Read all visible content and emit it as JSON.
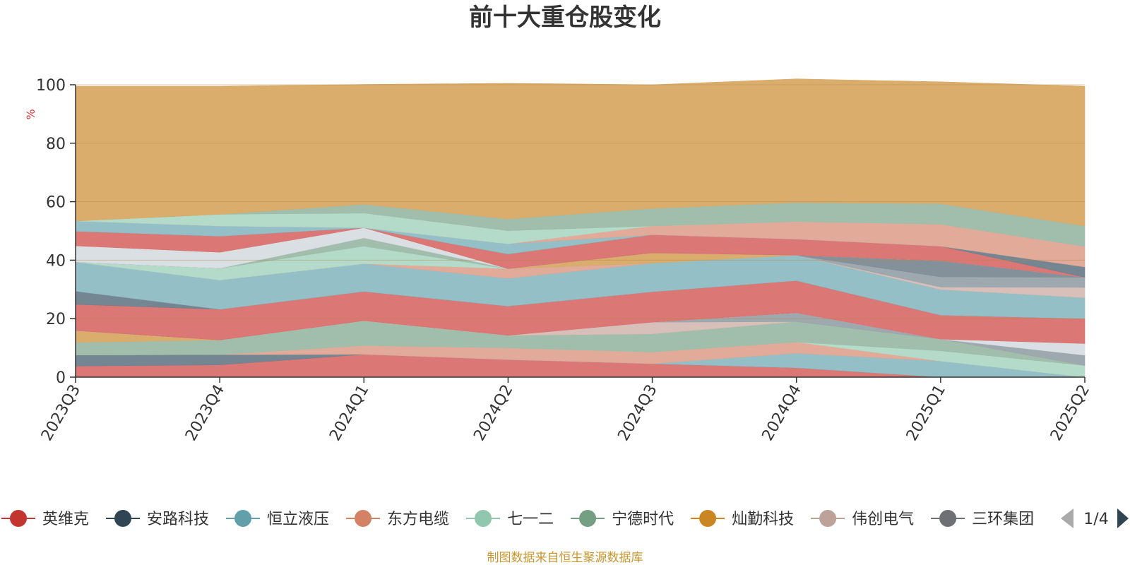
{
  "chart_data": {
    "type": "area",
    "title": "前十大重仓股变化",
    "ylabel": "%",
    "ylim": [
      0,
      100
    ],
    "yticks": [
      0,
      20,
      40,
      60,
      80,
      100
    ],
    "x": [
      "2023Q3",
      "2023Q4",
      "2024Q1",
      "2024Q2",
      "2024Q3",
      "2024Q4",
      "2025Q1",
      "2025Q2"
    ],
    "series": [
      {
        "name": "英维克",
        "color": "#d9706d",
        "values": [
          3.8,
          4.2,
          7.8,
          6.0,
          4.6,
          3.2,
          0,
          0
        ]
      },
      {
        "name": "安路科技",
        "color": "#6e7f8d",
        "values": [
          3.8,
          3.5,
          0,
          0,
          0,
          0,
          0,
          0
        ]
      },
      {
        "name": "恒立液压",
        "color": "#8fbcc4",
        "values": [
          0,
          0,
          0,
          0,
          0,
          5.0,
          5.5,
          0
        ]
      },
      {
        "name": "东方电缆",
        "color": "#e0a592",
        "values": [
          0,
          0,
          3.0,
          4.0,
          4.0,
          3.8,
          0,
          0
        ]
      },
      {
        "name": "七一二",
        "color": "#b0d9c6",
        "values": [
          0,
          0,
          0,
          0,
          0,
          0,
          3.5,
          4.0
        ]
      },
      {
        "name": "宁德时代",
        "color": "#9cbba8",
        "values": [
          4.3,
          5.0,
          8.5,
          4.3,
          6.2,
          7.0,
          4.0,
          0
        ]
      },
      {
        "name": "灿勤科技",
        "color": "#d9a965",
        "values": [
          4.0,
          0,
          0,
          0,
          0,
          0,
          0,
          0
        ]
      },
      {
        "name": "伟创电气",
        "color": "#d6bcb6",
        "values": [
          0,
          0,
          0,
          0,
          4.0,
          0,
          0,
          0
        ]
      },
      {
        "name": "三环集团",
        "color": "#99a3ab",
        "values": [
          0,
          0,
          0,
          0,
          0,
          3.0,
          0,
          3.5
        ]
      },
      {
        "name": "",
        "color": "#d8dde3",
        "values": [
          0,
          0,
          0,
          0,
          0,
          0,
          0,
          4.0
        ]
      },
      {
        "name": "",
        "color": "#d9706d",
        "values": [
          9.0,
          10.5,
          10.0,
          10.0,
          10.4,
          11.0,
          8.2,
          8.5
        ]
      },
      {
        "name": "",
        "color": "#6e7f8d",
        "values": [
          4.5,
          0,
          0,
          0,
          0,
          0,
          0,
          0
        ]
      },
      {
        "name": "",
        "color": "#8fbcc4",
        "values": [
          10.0,
          10.0,
          9.5,
          9.5,
          9.8,
          8.7,
          8.8,
          7.2
        ]
      },
      {
        "name": "",
        "color": "#e0a592",
        "values": [
          0,
          0,
          0,
          3.3,
          0,
          0,
          0,
          0
        ]
      },
      {
        "name": "",
        "color": "#b0d9c6",
        "values": [
          0,
          4.0,
          6.0,
          0,
          0,
          0,
          0,
          0
        ]
      },
      {
        "name": "",
        "color": "#9cbba8",
        "values": [
          0,
          0,
          2.8,
          0,
          0,
          0,
          0,
          0
        ]
      },
      {
        "name": "",
        "color": "#d9a965",
        "values": [
          0,
          0,
          0,
          0,
          3.5,
          0,
          0,
          0
        ]
      },
      {
        "name": "",
        "color": "#d6bcb6",
        "values": [
          0,
          0,
          0,
          0,
          0,
          0,
          0.8,
          3.5
        ]
      },
      {
        "name": "",
        "color": "#99a3ab",
        "values": [
          0,
          0,
          0,
          0,
          0,
          0,
          3.5,
          3.5
        ]
      },
      {
        "name": "",
        "color": "#7d8b96",
        "values": [
          0,
          0,
          0,
          0,
          0,
          0,
          5.5,
          0
        ]
      },
      {
        "name": "",
        "color": "#d8dde3",
        "values": [
          5.5,
          5.5,
          3.5,
          0,
          0,
          0,
          0,
          0
        ]
      },
      {
        "name": "",
        "color": "#d9706d",
        "values": [
          5.0,
          5.5,
          0,
          5.0,
          6.2,
          5.5,
          5.0,
          0
        ]
      },
      {
        "name": "",
        "color": "#6e7f8d",
        "values": [
          0,
          0,
          0,
          0,
          0,
          0,
          0,
          3.5
        ]
      },
      {
        "name": "",
        "color": "#8fbcc4",
        "values": [
          3.5,
          3.5,
          0,
          3.5,
          0,
          0,
          0,
          0
        ]
      },
      {
        "name": "",
        "color": "#e0a592",
        "values": [
          0,
          0,
          0,
          0,
          3.0,
          6.0,
          7.5,
          7.0
        ]
      },
      {
        "name": "",
        "color": "#b0d9c6",
        "values": [
          0,
          4.0,
          5.0,
          4.5,
          0,
          0,
          0,
          0
        ]
      },
      {
        "name": "",
        "color": "#9cbba8",
        "values": [
          0,
          0,
          3.0,
          4.0,
          6.0,
          6.5,
          7.0,
          7.0
        ]
      },
      {
        "name": "",
        "color": "#d9a965",
        "values": [
          46.1,
          43.8,
          41.0,
          46.4,
          42.3,
          42.3,
          41.7,
          47.8
        ]
      }
    ],
    "legend": {
      "items": [
        {
          "name": "英维克",
          "color": "#c23531"
        },
        {
          "name": "安路科技",
          "color": "#2f4554"
        },
        {
          "name": "恒立液压",
          "color": "#61a0a8"
        },
        {
          "name": "东方电缆",
          "color": "#d48265"
        },
        {
          "name": "七一二",
          "color": "#91c7ae"
        },
        {
          "name": "宁德时代",
          "color": "#749f83"
        },
        {
          "name": "灿勤科技",
          "color": "#ca8622"
        },
        {
          "name": "伟创电气",
          "color": "#bda29a"
        },
        {
          "name": "三环集团",
          "color": "#6e7074"
        }
      ],
      "page": "1/4",
      "placement": "bottom"
    },
    "grid": true
  },
  "source_note": "制图数据来自恒生聚源数据库"
}
